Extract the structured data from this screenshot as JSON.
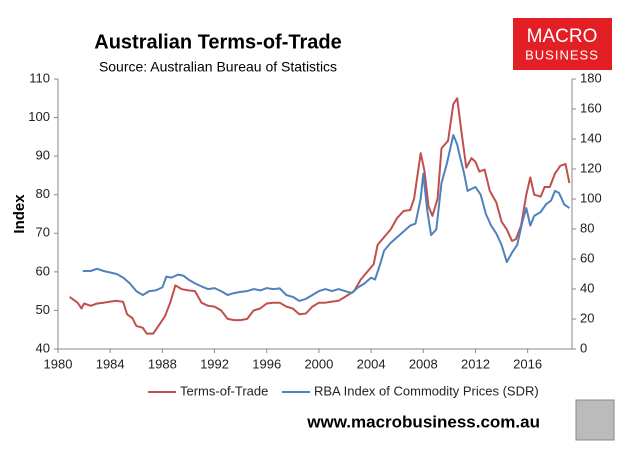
{
  "chart_data": {
    "type": "line",
    "title": "Australian Terms-of-Trade",
    "subtitle": "Source: Australian Bureau of Statistics",
    "y_label": "Index",
    "footer": "www.macrobusiness.com.au",
    "logo": [
      "MACRO",
      "BUSINESS"
    ],
    "xlim": [
      1980,
      2019.4
    ],
    "xticks": [
      1980,
      1984,
      1988,
      1992,
      1996,
      2000,
      2004,
      2008,
      2012,
      2016
    ],
    "ylim": [
      40,
      110
    ],
    "yticks": [
      40,
      50,
      60,
      70,
      80,
      90,
      100,
      110
    ],
    "y2lim": [
      0,
      180
    ],
    "y2ticks": [
      0,
      20,
      40,
      60,
      80,
      100,
      120,
      140,
      160,
      180
    ],
    "legend": "bottom",
    "series": [
      {
        "name": "Terms-of-Trade",
        "color": "#c0504d",
        "x": [
          1980.9,
          1981.5,
          1981.8,
          1982,
          1982.5,
          1983,
          1983.5,
          1984,
          1984.5,
          1985,
          1985.3,
          1985.7,
          1986,
          1986.5,
          1986.8,
          1987.3,
          1987.8,
          1988.2,
          1988.6,
          1989,
          1989.5,
          1990,
          1990.5,
          1991,
          1991.5,
          1992,
          1992.5,
          1993,
          1993.5,
          1994,
          1994.5,
          1995,
          1995.5,
          1996,
          1996.5,
          1997,
          1997.5,
          1998,
          1998.5,
          1999,
          1999.5,
          2000,
          2000.5,
          2001,
          2001.5,
          2002,
          2002.7,
          2003.2,
          2003.7,
          2004.2,
          2004.5,
          2005,
          2005.5,
          2006,
          2006.5,
          2007,
          2007.3,
          2007.8,
          2008.1,
          2008.4,
          2008.7,
          2009.1,
          2009.4,
          2009.9,
          2010.3,
          2010.6,
          2010.9,
          2011.3,
          2011.7,
          2012,
          2012.3,
          2012.7,
          2013.1,
          2013.6,
          2014,
          2014.4,
          2014.8,
          2015.1,
          2015.5,
          2015.9,
          2016.2,
          2016.5,
          2017,
          2017.3,
          2017.7,
          2018.1,
          2018.5,
          2018.9,
          2019.2
        ],
        "values": [
          53.5,
          52,
          50.5,
          51.8,
          51.2,
          51.8,
          52,
          52.3,
          52.5,
          52.2,
          49,
          48,
          46,
          45.5,
          44,
          44,
          46.5,
          48.5,
          52,
          56.5,
          55.5,
          55.2,
          55,
          52,
          51.2,
          51,
          50,
          47.8,
          47.5,
          47.5,
          47.8,
          50,
          50.5,
          51.8,
          52,
          52,
          51,
          50.5,
          49,
          49.2,
          51,
          52,
          52,
          52.3,
          52.5,
          53.5,
          55,
          58,
          60,
          62,
          67,
          69,
          71,
          74,
          75.8,
          76,
          79,
          90.8,
          86,
          77,
          74.5,
          79,
          92,
          94,
          103.5,
          105,
          97,
          87,
          89.5,
          88.5,
          86,
          86.5,
          81,
          78,
          73,
          71,
          68,
          68.5,
          72,
          80,
          84.5,
          80,
          79.5,
          82,
          82,
          85.5,
          87.5,
          88,
          83
        ]
      },
      {
        "name": "RBA Index of Commodity Prices (SDR)",
        "color": "#4f81bd",
        "axis": "y2",
        "x": [
          1981.9,
          1982.5,
          1983,
          1983.5,
          1984,
          1984.5,
          1985,
          1985.5,
          1986,
          1986.5,
          1987,
          1987.5,
          1988,
          1988.3,
          1988.7,
          1989.2,
          1989.6,
          1990,
          1990.5,
          1991,
          1991.5,
          1992,
          1992.5,
          1993,
          1993.5,
          1994,
          1994.5,
          1995,
          1995.5,
          1996,
          1996.5,
          1997,
          1997.5,
          1998,
          1998.5,
          1999,
          1999.5,
          2000,
          2000.5,
          2001,
          2001.5,
          2002,
          2002.5,
          2003,
          2003.5,
          2004,
          2004.3,
          2004.7,
          2005,
          2005.5,
          2006,
          2006.5,
          2007,
          2007.4,
          2007.8,
          2008,
          2008.3,
          2008.6,
          2009,
          2009.4,
          2009.8,
          2010.3,
          2010.6,
          2010.8,
          2011.1,
          2011.4,
          2011.7,
          2012,
          2012.4,
          2012.8,
          2013.2,
          2013.6,
          2014,
          2014.4,
          2014.8,
          2015.2,
          2015.6,
          2015.9,
          2016.2,
          2016.5,
          2017,
          2017.4,
          2017.8,
          2018.1,
          2018.4,
          2018.8,
          2019.2
        ],
        "values": [
          52,
          52,
          53.5,
          52,
          51,
          50,
          47.6,
          43.7,
          38.6,
          36,
          38.6,
          39.1,
          41.1,
          48.3,
          47.6,
          49.6,
          48.9,
          46.3,
          43.7,
          41.7,
          39.9,
          40.6,
          38.6,
          36,
          37.3,
          38.1,
          38.6,
          39.9,
          39.1,
          40.6,
          39.9,
          40.4,
          36,
          34.7,
          32.1,
          33.4,
          36,
          38.6,
          39.9,
          38.6,
          39.9,
          38.6,
          37.3,
          41.1,
          43.7,
          47.6,
          46.3,
          56.6,
          65.6,
          70.7,
          74.6,
          78.4,
          82.3,
          83.6,
          100.3,
          117,
          92.6,
          75.9,
          79.7,
          110.6,
          123.4,
          142.7,
          136.3,
          128.6,
          118.3,
          105.4,
          106.7,
          108,
          102.9,
          90,
          82.3,
          77.1,
          69.4,
          57.9,
          64.3,
          69.4,
          84.9,
          93.9,
          82.3,
          88.7,
          91.3,
          96.4,
          99,
          105.4,
          104.1,
          96.4,
          93.9
        ]
      }
    ]
  }
}
